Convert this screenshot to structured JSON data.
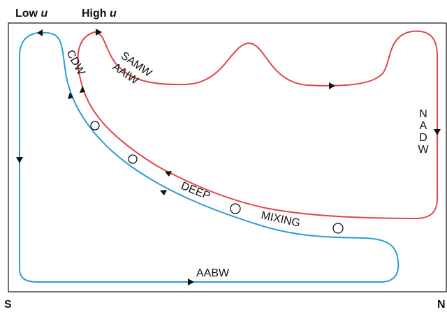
{
  "header": {
    "low": {
      "text": "Low",
      "symbol": "u"
    },
    "high": {
      "text": "High",
      "symbol": "u"
    }
  },
  "axis": {
    "south": "S",
    "north": "N"
  },
  "labels": {
    "samw": "SAMW",
    "aaiw": "AAIW",
    "cdw": "CDW",
    "nadw": "NADW",
    "deep": "DEEP",
    "mixing": "MIXING",
    "aabw": "AABW"
  }
}
